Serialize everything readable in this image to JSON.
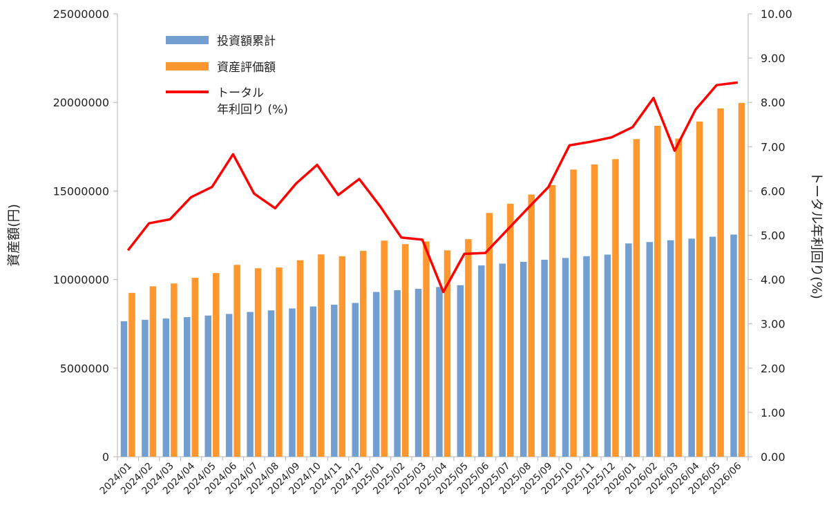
{
  "chart_data": {
    "type": "bar",
    "categories": [
      "2024/01",
      "2024/02",
      "2024/03",
      "2024/04",
      "2024/05",
      "2024/06",
      "2024/07",
      "2024/08",
      "2024/09",
      "2024/10",
      "2024/11",
      "2024/12",
      "2025/01",
      "2025/02",
      "2025/03",
      "2025/04",
      "2025/05",
      "2025/06",
      "2025/07",
      "2025/08",
      "2025/09",
      "2025/10",
      "2025/11",
      "2025/12",
      "2026/01",
      "2026/02",
      "2026/03",
      "2026/04",
      "2026/05",
      "2026/06"
    ],
    "series": [
      {
        "name": "投資額累計",
        "type": "bar",
        "axis": "left",
        "color": "#729fcf",
        "values": [
          7650000,
          7730000,
          7800000,
          7880000,
          7970000,
          8060000,
          8170000,
          8260000,
          8370000,
          8480000,
          8580000,
          8680000,
          9300000,
          9400000,
          9480000,
          9580000,
          9680000,
          10800000,
          10900000,
          11000000,
          11120000,
          11220000,
          11320000,
          11410000,
          12040000,
          12120000,
          12220000,
          12310000,
          12420000,
          12540000
        ]
      },
      {
        "name": "資産評価額",
        "type": "bar",
        "axis": "left",
        "color": "#ff972f",
        "values": [
          9250000,
          9620000,
          9780000,
          10100000,
          10370000,
          10830000,
          10640000,
          10680000,
          11090000,
          11420000,
          11320000,
          11620000,
          12200000,
          12000000,
          12150000,
          11650000,
          12280000,
          13760000,
          14280000,
          14800000,
          15330000,
          16210000,
          16500000,
          16800000,
          17930000,
          18680000,
          17960000,
          18920000,
          19660000,
          19970000
        ]
      },
      {
        "name": "トータル\n年利回り (%)",
        "type": "line",
        "axis": "right",
        "color": "#ff0000",
        "values": [
          4.66,
          5.27,
          5.36,
          5.86,
          6.09,
          6.83,
          5.94,
          5.61,
          6.17,
          6.59,
          5.91,
          6.27,
          5.65,
          4.95,
          4.9,
          3.72,
          4.58,
          4.6,
          5.1,
          5.6,
          6.09,
          7.03,
          7.11,
          7.21,
          7.44,
          8.1,
          6.91,
          7.84,
          8.39,
          8.45
        ]
      }
    ],
    "ylabel": "資産額(円)",
    "y2label": "トータル年利回り(%)",
    "ylim": [
      0,
      25000000
    ],
    "y2lim": [
      0,
      10
    ],
    "yticks": [
      "0",
      "5000000",
      "10000000",
      "15000000",
      "20000000",
      "25000000"
    ],
    "y2ticks": [
      "0.00",
      "1.00",
      "2.00",
      "3.00",
      "4.00",
      "5.00",
      "6.00",
      "7.00",
      "8.00",
      "9.00",
      "10.00"
    ],
    "grid": false,
    "legend": "top-left"
  }
}
